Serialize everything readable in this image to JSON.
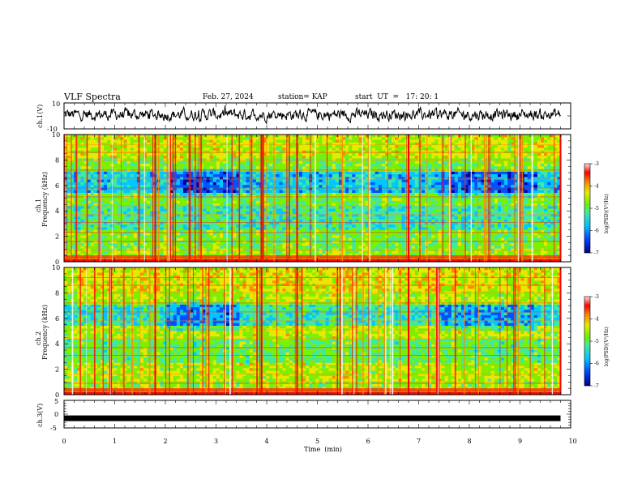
{
  "header": {
    "title": "VLF Spectra",
    "date": "Feb. 27, 2024",
    "station": "station= KAP",
    "start_ut": "start  UT  =   17: 20: 1"
  },
  "colors": {
    "waveform": "#000000",
    "colormap": [
      "#0000a0",
      "#0050ff",
      "#00c8ff",
      "#40e8a0",
      "#7cf000",
      "#e8e800",
      "#ff8800",
      "#ff0000",
      "#ffffff"
    ]
  },
  "chart_data": [
    {
      "id": "ch1-waveform",
      "type": "line",
      "ylabel": "ch.1(V)",
      "ylim": [
        -10,
        10
      ],
      "yticks": [
        "10",
        "-10"
      ],
      "x_range_min": [
        0,
        9.8
      ],
      "description_of_signal": "noisy broadband waveform fluctuating roughly between -4 and 6 V"
    },
    {
      "id": "ch1-spectrogram",
      "type": "heatmap",
      "ylabel": "ch.1\nFrequency (kHz)",
      "ylabel_line1": "ch.1",
      "ylabel_line2": "Frequency (kHz)",
      "ylim": [
        0,
        10
      ],
      "yticks": [
        "0",
        "2",
        "4",
        "6",
        "8",
        "10"
      ],
      "colorbar": {
        "label": "log(PSD)(V²/Hz)",
        "range": [
          -7,
          -3
        ],
        "ticks": [
          "-3",
          "-4",
          "-5",
          "-6",
          "-7"
        ]
      }
    },
    {
      "id": "ch2-spectrogram",
      "type": "heatmap",
      "ylabel": "ch.2\nFrequency (kHz)",
      "ylabel_line1": "ch.2",
      "ylabel_line2": "Frequency (kHz)",
      "ylim": [
        0,
        10
      ],
      "yticks": [
        "0",
        "2",
        "4",
        "6",
        "8",
        "10"
      ],
      "colorbar": {
        "label": "log(PSD)(V²/Hz)",
        "range": [
          -7,
          -3
        ],
        "ticks": [
          "-3",
          "-4",
          "-5",
          "-6",
          "-7"
        ]
      }
    },
    {
      "id": "ch3-waveform",
      "type": "line",
      "ylabel": "ch.3(V)",
      "ylim": [
        -5,
        5
      ],
      "yticks": [
        "5",
        "0",
        "-5"
      ],
      "constant_value_approx": -1.5
    }
  ],
  "xaxis": {
    "label": "Time  (min)",
    "ticks": [
      "0",
      "1",
      "2",
      "3",
      "4",
      "5",
      "6",
      "7",
      "8",
      "9",
      "10"
    ],
    "range": [
      0,
      10
    ],
    "data_end": 9.8
  }
}
